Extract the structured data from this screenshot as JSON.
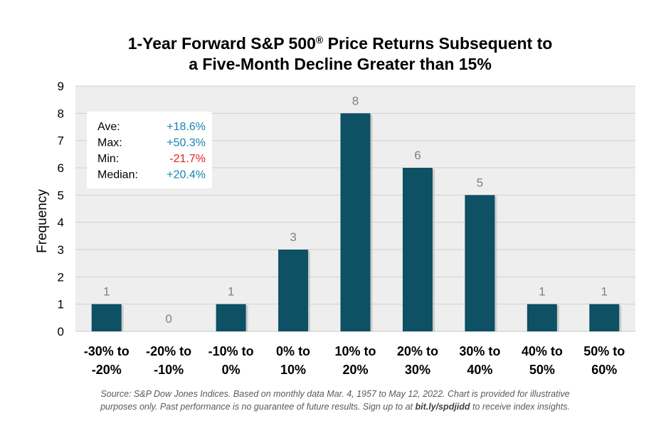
{
  "chart_data": {
    "type": "bar",
    "title_line1": "1-Year Forward S&P 500",
    "title_reg": "®",
    "title_line1_end": " Price Returns Subsequent to",
    "title_line2": "a Five-Month Decline Greater than 15%",
    "ylabel": "Frequency",
    "xlabel": "",
    "ylim": [
      0,
      9
    ],
    "yticks": [
      "0",
      "1",
      "2",
      "3",
      "4",
      "5",
      "6",
      "7",
      "8",
      "9"
    ],
    "categories": [
      [
        "-30% to",
        "-20%"
      ],
      [
        "-20% to",
        "-10%"
      ],
      [
        "-10% to",
        "0%"
      ],
      [
        "0% to",
        "10%"
      ],
      [
        "10% to",
        "20%"
      ],
      [
        "20% to",
        "30%"
      ],
      [
        "30% to",
        "40%"
      ],
      [
        "40% to",
        "50%"
      ],
      [
        "50% to",
        "60%"
      ]
    ],
    "values": [
      1,
      0,
      1,
      3,
      8,
      6,
      5,
      1,
      1
    ],
    "data_labels": [
      "1",
      "0",
      "1",
      "3",
      "8",
      "6",
      "5",
      "1",
      "1"
    ],
    "grid": true,
    "colors": {
      "bar": "#0e5064",
      "plot_bg": "#eeeeee",
      "grid": "#d0d0d0",
      "positive": "#1a84b0",
      "negative": "#e02020"
    },
    "stats": [
      {
        "label": "Ave:",
        "value": "+18.6%",
        "sign": "positive"
      },
      {
        "label": "Max:",
        "value": "+50.3%",
        "sign": "positive"
      },
      {
        "label": "Min:",
        "value": "-21.7%",
        "sign": "negative"
      },
      {
        "label": "Median:",
        "value": "+20.4%",
        "sign": "positive"
      }
    ]
  },
  "source": {
    "line1": "Source: S&P Dow Jones Indices.  Based on monthly data Mar. 4, 1957 to May 12, 2022.  Chart is provided for illustrative",
    "line2_a": "purposes only. Past performance is no guarantee of future results. Sign up to at ",
    "line2_link": "bit.ly/spdjidd",
    "line2_b": " to receive index insights."
  }
}
